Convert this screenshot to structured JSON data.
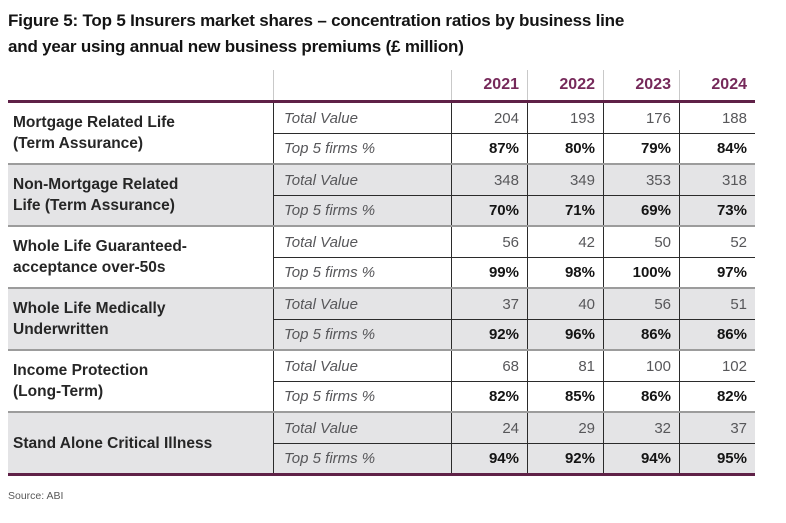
{
  "ui": {
    "title_lines": [
      "Figure 5: Top 5 Insurers market shares – concentration ratios by business line",
      "and year using annual new business premiums (£ million)"
    ],
    "source": "Source: ABI",
    "table": {
      "years": [
        "2021",
        "2022",
        "2023",
        "2024"
      ],
      "metric_labels": {
        "total_value": "Total Value",
        "top5": "Top 5 firms %"
      },
      "groups": [
        {
          "name_lines": [
            "Mortgage Related Life",
            "(Term Assurance)"
          ],
          "total_values": [
            "204",
            "193",
            "176",
            "188"
          ],
          "top5_shares": [
            "87%",
            "80%",
            "79%",
            "84%"
          ]
        },
        {
          "name_lines": [
            "Non-Mortgage Related",
            "Life (Term Assurance)"
          ],
          "total_values": [
            "348",
            "349",
            "353",
            "318"
          ],
          "top5_shares": [
            "70%",
            "71%",
            "69%",
            "73%"
          ]
        },
        {
          "name_lines": [
            "Whole Life Guaranteed-",
            "acceptance over-50s"
          ],
          "total_values": [
            "56",
            "42",
            "50",
            "52"
          ],
          "top5_shares": [
            "99%",
            "98%",
            "100%",
            "97%"
          ]
        },
        {
          "name_lines": [
            "Whole Life Medically",
            "Underwritten"
          ],
          "total_values": [
            "37",
            "40",
            "56",
            "51"
          ],
          "top5_shares": [
            "92%",
            "96%",
            "86%",
            "86%"
          ]
        },
        {
          "name_lines": [
            "Income Protection",
            "(Long-Term)"
          ],
          "total_values": [
            "68",
            "81",
            "100",
            "102"
          ],
          "top5_shares": [
            "82%",
            "85%",
            "86%",
            "82%"
          ]
        },
        {
          "name_lines": [
            "Stand Alone Critical Illness"
          ],
          "total_values": [
            "24",
            "29",
            "32",
            "37"
          ],
          "top5_shares": [
            "94%",
            "92%",
            "94%",
            "95%"
          ]
        }
      ]
    }
  },
  "chart_data": {
    "type": "table",
    "title": "Figure 5: Top 5 Insurers market shares – concentration ratios by business line and year using annual new business premiums (£ million)",
    "columns": [
      "2021",
      "2022",
      "2023",
      "2024"
    ],
    "metrics": [
      "Total Value",
      "Top 5 firms %"
    ],
    "rows": [
      {
        "business_line": "Mortgage Related Life (Term Assurance)",
        "total_value": [
          204,
          193,
          176,
          188
        ],
        "top5_firms_pct": [
          87,
          80,
          79,
          84
        ]
      },
      {
        "business_line": "Non-Mortgage Related Life (Term Assurance)",
        "total_value": [
          348,
          349,
          353,
          318
        ],
        "top5_firms_pct": [
          70,
          71,
          69,
          73
        ]
      },
      {
        "business_line": "Whole Life Guaranteed-acceptance over-50s",
        "total_value": [
          56,
          42,
          50,
          52
        ],
        "top5_firms_pct": [
          99,
          98,
          100,
          97
        ]
      },
      {
        "business_line": "Whole Life Medically Underwritten",
        "total_value": [
          37,
          40,
          56,
          51
        ],
        "top5_firms_pct": [
          92,
          96,
          86,
          86
        ]
      },
      {
        "business_line": "Income Protection (Long-Term)",
        "total_value": [
          68,
          81,
          100,
          102
        ],
        "top5_firms_pct": [
          82,
          85,
          86,
          82
        ]
      },
      {
        "business_line": "Stand Alone Critical Illness",
        "total_value": [
          24,
          29,
          32,
          37
        ],
        "top5_firms_pct": [
          94,
          92,
          94,
          95
        ]
      }
    ],
    "source": "ABI"
  },
  "colors": {
    "accent_line_plum": "#5f2147",
    "year_text_plum": "#76295a",
    "row_alt_gray": "#e4e4e6",
    "grid_dark": "#2b2b2b",
    "group_divider_gray": "#9c9c9c",
    "header_divider_gray": "#c9c9c9",
    "text_gray": "#57575a"
  }
}
